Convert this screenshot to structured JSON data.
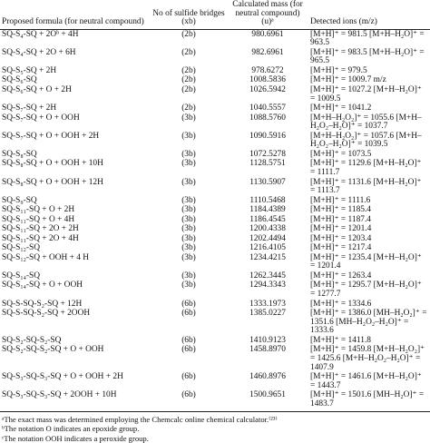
{
  "table": {
    "header": [
      "Proposed formula (for neutral compound)",
      "No of sulfide bridges (xb)",
      "Calculated mass (for neutral compound) (u)ᵃ",
      "Detected ions (m/z)"
    ],
    "rows": [
      [
        "SQ-S₄-SQ + 2Oᵇ + 4H",
        "(2b)",
        "980.6961",
        "[M+H]⁺ = 981.5 [M+H–H₂O]⁺ = 963.5"
      ],
      [
        "SQ-S₄-SQ + 2O + 6H",
        "(2b)",
        "982.6961",
        "[M+H]⁺ = 983.5 [M+H–H₂O]⁺ = 965.5"
      ],
      [
        "SQ-S₅-SQ + 2H",
        "(2b)",
        "978.6272",
        "[M+H]⁺ = 979.5"
      ],
      [
        "SQ-S₆-SQ",
        "(2b)",
        "1008.5836",
        "[M+H]⁺ = 1009.7 m/z"
      ],
      [
        "SQ-S₆-SQ + O + 2H",
        "(2b)",
        "1026.5942",
        "[M+H]⁺ = 1027.2 [M+H–H₂O]⁺ = 1009.5"
      ],
      [
        "SQ-S₇-SQ + 2H",
        "(2b)",
        "1040.5557",
        "[M+H]⁺ = 1041.2"
      ],
      [
        "SQ-S₇-SQ + O + OOH",
        "(3b)",
        "1088.5760",
        "[M+H–H₂O₂]⁺ = 1055.6 [M+H–H₂O₂–H₂O]⁺ = 1037.7"
      ],
      [
        "SQ-S₇-SQ + O + OOH + 2H",
        "(3b)",
        "1090.5916",
        "[M+H–H₂O₂]⁺ = 1057.6 [M+H–H₂O₂–H₂O]⁺ = 1039.5"
      ],
      [
        "SQ-S₈-SQ",
        "(3b)",
        "1072.5278",
        "[M+H]⁺ = 1073.5"
      ],
      [
        "SQ-S₈-SQ + O + OOH + 10H",
        "(3b)",
        "1128.5751",
        "[M+H]⁺ = 1129.6 [M+H–H₂O]⁺ = 1111.7"
      ],
      [
        "SQ-S₈-SQ + O + OOH + 12H",
        "(3b)",
        "1130.5907",
        "[M+H]⁺ = 1131.6 [M+H–H₂O]⁺ = 1113.7"
      ],
      [
        "SQ-S₉-SQ",
        "(3b)",
        "1110.5468",
        "[M+H]⁺ = 1111.6"
      ],
      [
        "SQ-S₁₁-SQ + O + 2H",
        "(3b)",
        "1184.4389",
        "[M+H]⁺ = 1185.4"
      ],
      [
        "SQ-S₁₁-SQ + O + 4H",
        "(3b)",
        "1186.4545",
        "[M+H]⁺ = 1187.4"
      ],
      [
        "SQ-S₁₁-SQ + 2O + 2H",
        "(3b)",
        "1200.4338",
        "[M+H]⁺ = 1201.4"
      ],
      [
        "SQ-S₁₁-SQ + 2O + 4H",
        "(3b)",
        "1202.4494",
        "[M+H]⁺ = 1203.4"
      ],
      [
        "SQ-S₁₂-SQ",
        "(3b)",
        "1216.4105",
        "[M+H]⁺ = 1217.4"
      ],
      [
        "SQ-S₁₂-SQ + OOH + 4 H",
        "(3b)",
        "1234.4215",
        "[M+H]⁺ = 1235.4 [M+H–H₂O]⁺ = 1201.4"
      ],
      [
        "SQ-S₁₄-SQ",
        "(3b)",
        "1262.3445",
        "[M+H]⁺ = 1263.4"
      ],
      [
        "SQ-S₁₄-SQ + O + OOH",
        "(3b)",
        "1294.3343",
        "[M+H]⁺ = 1295.7 [M+H–H₂O]⁺ = 1277.7"
      ],
      [
        "SQ-S-SQ-S₂-SQ + 12H",
        "(6b)",
        "1333.1973",
        "[M+H]⁺ = 1334.6"
      ],
      [
        "SQ-S-SQ-S₂-SQ + 2OOH",
        "(6b)",
        "1385.0227",
        "[M+H]⁺ = 1386.0 [MH–H₂O₂]⁺ = 1351.6 [MH–H₂O₂–H₂O]⁺ = 1333.6"
      ],
      [
        "SQ-S₂-SQ-S₂-SQ",
        "(6b)",
        "1410.9123",
        "[M+H]⁺ = 1411.8"
      ],
      [
        "SQ-S₂-SQ-S₂-SQ + O + OOH",
        "(6b)",
        "1458.8970",
        "[M+H]⁺ = 1459.8 [M+H–H₂O₂]⁺ = 1425.6 [M+H–H₂O₂–H₂O]⁺ = 1407.9"
      ],
      [
        "SQ-S₃-SQ-S₃-SQ + O + OOH + 2H",
        "(6b)",
        "1460.8976",
        "[M+H]⁺ = 1461.6 [M+H–H₂O]⁺ = 1443.7"
      ],
      [
        "SQ-S₃-SQ-S₃-SQ + 2OOH + 10H",
        "(6b)",
        "1500.9651",
        "[M+H]⁺ = 1501.6 [MH–H₂O]⁺ = 1483.7"
      ]
    ],
    "footnotes": [
      "ᵃThe exact mass was determined employing the Chemcalc online chemical calculator.⁽²³⁾",
      "ᵇThe notation O indicates an epoxide group.",
      "ᶜThe notation OOH indicates a peroxide group."
    ]
  }
}
